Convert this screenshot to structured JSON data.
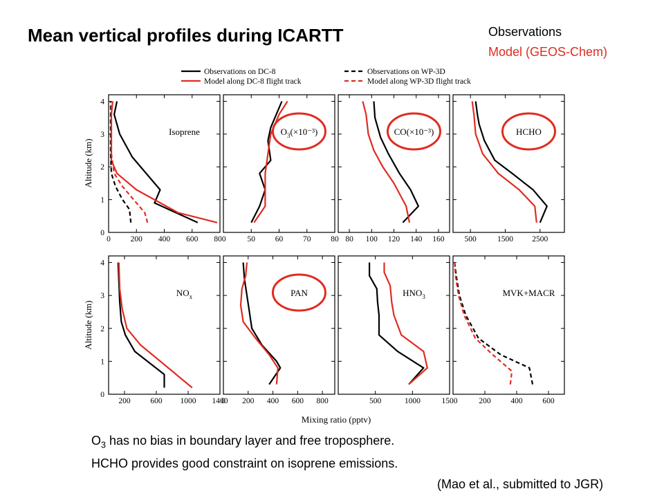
{
  "title": "Mean vertical profiles during ICARTT",
  "legend_top_right": {
    "observations": "Observations",
    "model": "Model (GEOS-Chem)"
  },
  "caption": {
    "line1_pre": "O",
    "line1_sub": "3",
    "line1_post": " has no bias in boundary layer and free troposphere.",
    "line2": "HCHO provides good constraint on isoprene emissions."
  },
  "citation": "(Mao et al., submitted to JGR)",
  "colors": {
    "observations": "#000000",
    "model": "#e02b20",
    "highlight": "#e02b20"
  },
  "chart_data": {
    "type": "line",
    "ylabel": "Altitude (km)",
    "xlabel": "Mixing ratio (pptv)",
    "ylim": [
      0,
      4.2
    ],
    "yticks": [
      0,
      1,
      2,
      3,
      4
    ],
    "legend": [
      {
        "label": "Observations on DC-8",
        "color": "#000000",
        "dash": "solid"
      },
      {
        "label": "Model along DC-8 flight track",
        "color": "#e02b20",
        "dash": "solid"
      },
      {
        "label": "Observations on WP-3D",
        "color": "#000000",
        "dash": "dashed"
      },
      {
        "label": "Model along WP-3D flight track",
        "color": "#e02b20",
        "dash": "dashed"
      }
    ],
    "panels": [
      {
        "label": "Isoprene",
        "label_sub": "",
        "label_post": "",
        "circled": false,
        "xlim": [
          0,
          800
        ],
        "xticks": [
          0,
          200,
          400,
          600,
          800
        ],
        "series": [
          {
            "name": "Observations on DC-8",
            "dash": false,
            "color": "#000000",
            "points": [
              [
                640,
                0.3
              ],
              [
                330,
                0.9
              ],
              [
                370,
                1.3
              ],
              [
                170,
                2.3
              ],
              [
                80,
                3.0
              ],
              [
                40,
                3.6
              ],
              [
                60,
                4.0
              ]
            ]
          },
          {
            "name": "Model along DC-8 flight track",
            "dash": false,
            "color": "#e02b20",
            "points": [
              [
                780,
                0.3
              ],
              [
                500,
                0.6
              ],
              [
                200,
                1.3
              ],
              [
                60,
                1.8
              ],
              [
                20,
                2.2
              ],
              [
                20,
                3.0
              ],
              [
                20,
                3.6
              ],
              [
                30,
                4.0
              ]
            ]
          },
          {
            "name": "Observations on WP-3D",
            "dash": true,
            "color": "#000000",
            "points": [
              [
                160,
                0.3
              ],
              [
                150,
                0.7
              ],
              [
                100,
                1.0
              ],
              [
                50,
                1.4
              ],
              [
                20,
                1.8
              ],
              [
                15,
                2.4
              ],
              [
                15,
                3.0
              ],
              [
                15,
                3.6
              ],
              [
                15,
                4.0
              ]
            ]
          },
          {
            "name": "Model along WP-3D flight track",
            "dash": true,
            "color": "#e02b20",
            "points": [
              [
                280,
                0.3
              ],
              [
                260,
                0.6
              ],
              [
                200,
                0.9
              ],
              [
                100,
                1.4
              ],
              [
                40,
                1.8
              ],
              [
                20,
                2.4
              ],
              [
                20,
                3.0
              ],
              [
                20,
                3.6
              ],
              [
                20,
                4.0
              ]
            ]
          }
        ]
      },
      {
        "label": "O",
        "label_sub": "3",
        "label_post": "(×10⁻³)",
        "circled": true,
        "xlim": [
          40,
          80
        ],
        "xticks": [
          50,
          60,
          70,
          80
        ],
        "series": [
          {
            "name": "Observations on DC-8",
            "dash": false,
            "color": "#000000",
            "points": [
              [
                50,
                0.3
              ],
              [
                53,
                0.8
              ],
              [
                55,
                1.3
              ],
              [
                53,
                1.8
              ],
              [
                57,
                2.2
              ],
              [
                56,
                2.8
              ],
              [
                57,
                3.2
              ],
              [
                61,
                4.0
              ]
            ]
          },
          {
            "name": "Model along DC-8 flight track",
            "dash": false,
            "color": "#e02b20",
            "points": [
              [
                51,
                0.3
              ],
              [
                55,
                0.8
              ],
              [
                55,
                1.3
              ],
              [
                55,
                1.8
              ],
              [
                56,
                2.4
              ],
              [
                57,
                3.0
              ],
              [
                60,
                3.6
              ],
              [
                63,
                4.0
              ]
            ]
          }
        ]
      },
      {
        "label": "CO(×10⁻³)",
        "label_sub": "",
        "label_post": "",
        "circled": true,
        "xlim": [
          70,
          170
        ],
        "xticks": [
          80,
          100,
          120,
          140,
          160
        ],
        "series": [
          {
            "name": "Observations on DC-8",
            "dash": false,
            "color": "#000000",
            "points": [
              [
                128,
                0.3
              ],
              [
                142,
                0.8
              ],
              [
                135,
                1.3
              ],
              [
                125,
                1.8
              ],
              [
                115,
                2.4
              ],
              [
                108,
                2.9
              ],
              [
                103,
                3.5
              ],
              [
                102,
                4.0
              ]
            ]
          },
          {
            "name": "Model along DC-8 flight track",
            "dash": false,
            "color": "#e02b20",
            "points": [
              [
                134,
                0.3
              ],
              [
                131,
                0.8
              ],
              [
                120,
                1.5
              ],
              [
                110,
                2.0
              ],
              [
                102,
                2.5
              ],
              [
                97,
                3.0
              ],
              [
                95,
                3.6
              ],
              [
                92,
                4.0
              ]
            ]
          }
        ]
      },
      {
        "label": "HCHO",
        "label_sub": "",
        "label_post": "",
        "circled": true,
        "xlim": [
          0,
          3200
        ],
        "xticks": [
          500,
          1500,
          2500
        ],
        "series": [
          {
            "name": "Observations on DC-8",
            "dash": false,
            "color": "#000000",
            "points": [
              [
                2500,
                0.3
              ],
              [
                2700,
                0.8
              ],
              [
                2300,
                1.3
              ],
              [
                1700,
                1.8
              ],
              [
                1200,
                2.2
              ],
              [
                900,
                2.8
              ],
              [
                750,
                3.3
              ],
              [
                700,
                3.6
              ],
              [
                650,
                4.0
              ]
            ]
          },
          {
            "name": "Model along DC-8 flight track",
            "dash": false,
            "color": "#e02b20",
            "points": [
              [
                2400,
                0.3
              ],
              [
                2350,
                0.8
              ],
              [
                1900,
                1.3
              ],
              [
                1300,
                1.8
              ],
              [
                850,
                2.4
              ],
              [
                650,
                3.0
              ],
              [
                600,
                3.6
              ],
              [
                550,
                4.0
              ]
            ]
          }
        ]
      },
      {
        "label": "NO",
        "label_sub": "x",
        "label_post": "",
        "circled": false,
        "xlim": [
          0,
          1400
        ],
        "xticks": [
          200,
          600,
          1000,
          1400
        ],
        "series": [
          {
            "name": "Observations on DC-8",
            "dash": false,
            "color": "#000000",
            "points": [
              [
                700,
                0.2
              ],
              [
                700,
                0.6
              ],
              [
                330,
                1.3
              ],
              [
                210,
                1.8
              ],
              [
                160,
                2.2
              ],
              [
                140,
                2.8
              ],
              [
                130,
                3.4
              ],
              [
                120,
                4.0
              ]
            ]
          },
          {
            "name": "Model along DC-8 flight track",
            "dash": false,
            "color": "#e02b20",
            "points": [
              [
                1050,
                0.2
              ],
              [
                750,
                0.8
              ],
              [
                400,
                1.5
              ],
              [
                230,
                2.0
              ],
              [
                170,
                2.6
              ],
              [
                140,
                3.2
              ],
              [
                130,
                4.0
              ]
            ]
          }
        ]
      },
      {
        "label": "PAN",
        "label_sub": "",
        "label_post": "",
        "circled": true,
        "xlim": [
          0,
          900
        ],
        "xticks": [
          0,
          200,
          400,
          600,
          800
        ],
        "series": [
          {
            "name": "Observations on DC-8",
            "dash": false,
            "color": "#000000",
            "points": [
              [
                370,
                0.3
              ],
              [
                460,
                0.8
              ],
              [
                430,
                1.0
              ],
              [
                310,
                1.5
              ],
              [
                230,
                2.0
              ],
              [
                210,
                2.5
              ],
              [
                190,
                3.0
              ],
              [
                170,
                3.5
              ],
              [
                160,
                4.0
              ]
            ]
          },
          {
            "name": "Model along DC-8 flight track",
            "dash": false,
            "color": "#e02b20",
            "points": [
              [
                430,
                0.3
              ],
              [
                440,
                0.8
              ],
              [
                370,
                1.2
              ],
              [
                260,
                1.7
              ],
              [
                160,
                2.2
              ],
              [
                140,
                2.7
              ],
              [
                150,
                3.2
              ],
              [
                180,
                3.6
              ],
              [
                190,
                4.0
              ]
            ]
          }
        ]
      },
      {
        "label": "HNO",
        "label_sub": "3",
        "label_post": "",
        "circled": false,
        "xlim": [
          0,
          1500
        ],
        "xticks": [
          500,
          1000,
          1500
        ],
        "series": [
          {
            "name": "Observations on DC-8",
            "dash": false,
            "color": "#000000",
            "points": [
              [
                950,
                0.3
              ],
              [
                1150,
                0.8
              ],
              [
                800,
                1.3
              ],
              [
                550,
                1.8
              ],
              [
                550,
                2.4
              ],
              [
                530,
                2.8
              ],
              [
                520,
                3.2
              ],
              [
                420,
                3.6
              ],
              [
                420,
                4.0
              ]
            ]
          },
          {
            "name": "Model along DC-8 flight track",
            "dash": false,
            "color": "#e02b20",
            "points": [
              [
                950,
                0.3
              ],
              [
                1200,
                0.8
              ],
              [
                1150,
                1.3
              ],
              [
                850,
                1.8
              ],
              [
                750,
                2.4
              ],
              [
                720,
                2.8
              ],
              [
                700,
                3.3
              ],
              [
                620,
                3.7
              ],
              [
                620,
                4.0
              ]
            ]
          }
        ]
      },
      {
        "label": "MVK+MACR",
        "label_sub": "",
        "label_post": "",
        "circled": false,
        "xlim": [
          0,
          700
        ],
        "xticks": [
          200,
          400,
          600
        ],
        "series": [
          {
            "name": "Observations on WP-3D",
            "dash": true,
            "color": "#000000",
            "points": [
              [
                500,
                0.3
              ],
              [
                480,
                0.8
              ],
              [
                300,
                1.2
              ],
              [
                160,
                1.7
              ],
              [
                80,
                2.4
              ],
              [
                40,
                3.0
              ],
              [
                20,
                3.6
              ],
              [
                10,
                4.0
              ]
            ]
          },
          {
            "name": "Model along WP-3D flight track",
            "dash": true,
            "color": "#e02b20",
            "points": [
              [
                360,
                0.3
              ],
              [
                370,
                0.7
              ],
              [
                250,
                1.2
              ],
              [
                140,
                1.7
              ],
              [
                70,
                2.4
              ],
              [
                35,
                3.0
              ],
              [
                15,
                3.6
              ],
              [
                10,
                4.0
              ]
            ]
          }
        ]
      }
    ]
  }
}
